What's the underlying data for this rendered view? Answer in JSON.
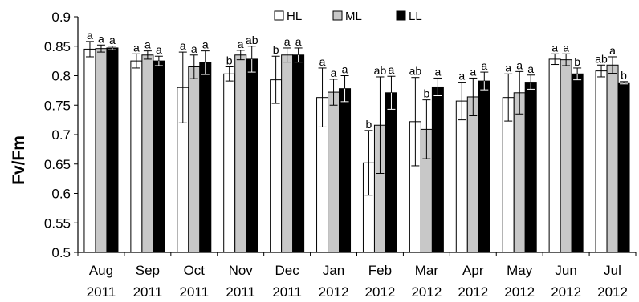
{
  "chart_data": {
    "type": "bar",
    "ylabel": "Fv/Fm",
    "ylim": [
      0.5,
      0.9
    ],
    "y_ticks": [
      "0.5",
      "0.55",
      "0.6",
      "0.65",
      "0.7",
      "0.75",
      "0.8",
      "0.85",
      "0.9"
    ],
    "categories": [
      {
        "month": "Aug",
        "year": "2011"
      },
      {
        "month": "Sep",
        "year": "2011"
      },
      {
        "month": "Oct",
        "year": "2011"
      },
      {
        "month": "Nov",
        "year": "2011"
      },
      {
        "month": "Dec",
        "year": "2011"
      },
      {
        "month": "Jan",
        "year": "2012"
      },
      {
        "month": "Feb",
        "year": "2012"
      },
      {
        "month": "Mar",
        "year": "2012"
      },
      {
        "month": "Apr",
        "year": "2012"
      },
      {
        "month": "May",
        "year": "2012"
      },
      {
        "month": "Jun",
        "year": "2012"
      },
      {
        "month": "Jul",
        "year": "2012"
      }
    ],
    "legend_position": "top-center",
    "series": [
      {
        "name": "HL",
        "fill": "#ffffff",
        "values": [
          0.845,
          0.825,
          0.78,
          0.803,
          0.793,
          0.763,
          0.652,
          0.722,
          0.757,
          0.763,
          0.828,
          0.808
        ],
        "errors": [
          0.013,
          0.012,
          0.06,
          0.012,
          0.04,
          0.05,
          0.055,
          0.075,
          0.032,
          0.04,
          0.009,
          0.01
        ],
        "letters": [
          "a",
          "a",
          "a",
          "b",
          "b",
          "a",
          "b",
          "ab",
          "a",
          "a",
          "a",
          "ab"
        ]
      },
      {
        "name": "ML",
        "fill": "#c8c8c8",
        "values": [
          0.846,
          0.835,
          0.815,
          0.835,
          0.835,
          0.772,
          0.716,
          0.709,
          0.764,
          0.771,
          0.827,
          0.818
        ],
        "errors": [
          0.006,
          0.007,
          0.02,
          0.008,
          0.012,
          0.022,
          0.082,
          0.05,
          0.032,
          0.036,
          0.01,
          0.014
        ],
        "letters": [
          "a",
          "a",
          "a",
          "a",
          "a",
          "a",
          "ab",
          "b",
          "a",
          "a",
          "a",
          "a"
        ]
      },
      {
        "name": "LL",
        "fill": "#000000",
        "values": [
          0.847,
          0.825,
          0.822,
          0.828,
          0.835,
          0.778,
          0.771,
          0.781,
          0.791,
          0.789,
          0.803,
          0.788
        ],
        "errors": [
          0.003,
          0.008,
          0.02,
          0.022,
          0.012,
          0.022,
          0.028,
          0.015,
          0.015,
          0.012,
          0.01,
          0.002
        ],
        "letters": [
          "a",
          "a",
          "a",
          "ab",
          "a",
          "a",
          "a",
          "a",
          "a",
          "a",
          "b",
          "b"
        ]
      }
    ]
  }
}
